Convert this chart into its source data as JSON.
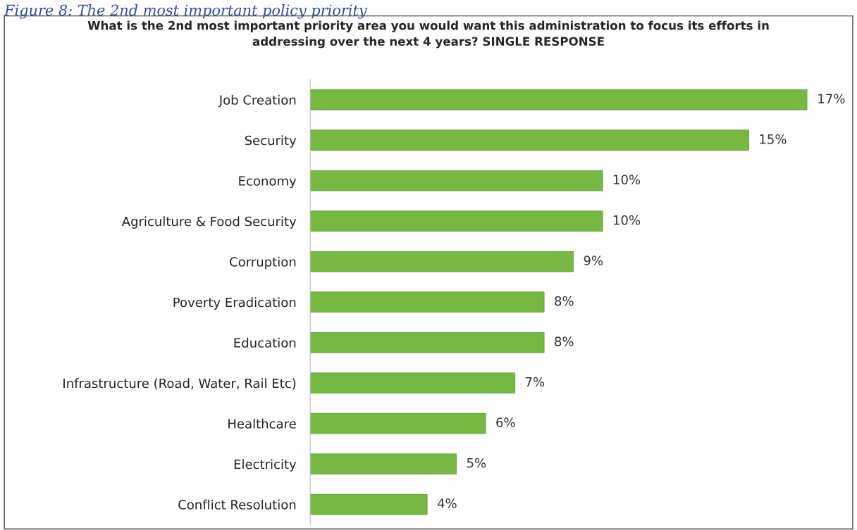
{
  "chart_data": {
    "type": "bar",
    "orientation": "horizontal",
    "title": "What is the 2nd most important priority area you would want this administration to focus its efforts in\naddressing over the next 4 years? SINGLE RESPONSE",
    "annotations": [
      "Figure 8: The 2nd most important policy priority"
    ],
    "categories": [
      "Job Creation",
      "Security",
      "Economy",
      "Agriculture & Food Security",
      "Corruption",
      "Poverty Eradication",
      "Education",
      "Infrastructure (Road, Water, Rail Etc)",
      "Healthcare",
      "Electricity",
      "Conflict Resolution"
    ],
    "values": [
      17,
      15,
      10,
      10,
      9,
      8,
      8,
      7,
      6,
      5,
      4
    ],
    "value_labels": [
      "17%",
      "15%",
      "10%",
      "10%",
      "9%",
      "8%",
      "8%",
      "7%",
      "6%",
      "5%",
      "4%"
    ],
    "color": "#77b843",
    "grid": false,
    "legend": false,
    "tick_labels": "y"
  }
}
